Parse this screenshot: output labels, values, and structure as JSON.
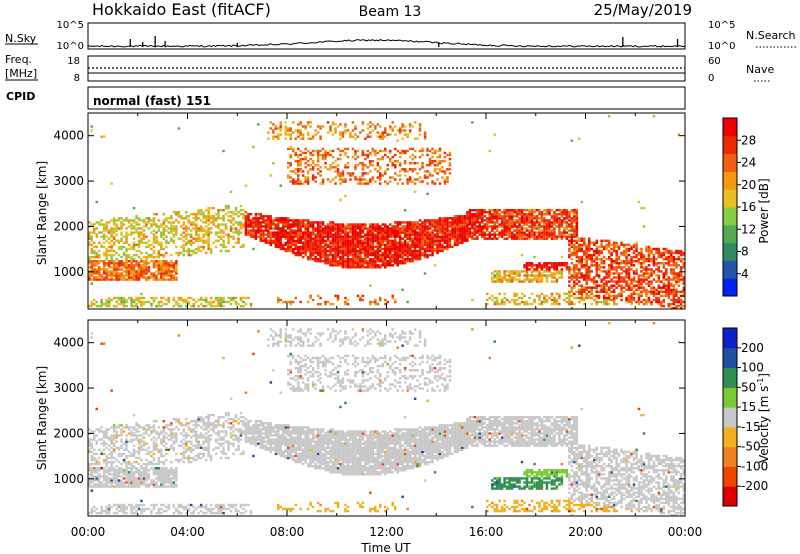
{
  "header": {
    "station": "Hokkaido East (fitACF)",
    "beam": "Beam 13",
    "date": "25/May/2019"
  },
  "top_panels": {
    "nsky_label": "N.Sky",
    "nsky_ticks": [
      "10^5",
      "10^0"
    ],
    "nsearch_label": "N.Search",
    "nsearch_ticks": [
      "10^5",
      "10^0"
    ],
    "freq_label": "Freq.",
    "freq_unit": "[MHz]",
    "freq_ticks": [
      "18",
      "8"
    ],
    "nave_label": "Nave",
    "nave_ticks": [
      "60",
      "0"
    ],
    "cpid_label": "CPID",
    "cpid_value": "normal (fast) 151"
  },
  "chart_data": [
    {
      "type": "heatmap",
      "name": "power",
      "ylabel": "Slant Range [km]",
      "yticks": [
        "4000",
        "3000",
        "2000",
        "1000"
      ],
      "ylim": [
        180,
        4500
      ],
      "xlim": [
        "00:00",
        "24:00"
      ],
      "colorbar": {
        "label": "Power [dB]",
        "ticks": [
          "28",
          "24",
          "20",
          "16",
          "12",
          "8",
          "4"
        ],
        "range": [
          0,
          30
        ],
        "colors": [
          "#0022ee",
          "#2255aa",
          "#338866",
          "#55aa55",
          "#88cc44",
          "#e8c020",
          "#f59a10",
          "#f06010",
          "#ee2a00",
          "#ee0000"
        ]
      }
    },
    {
      "type": "heatmap",
      "name": "velocity",
      "ylabel": "Slant Range [km]",
      "yticks": [
        "4000",
        "3000",
        "2000",
        "1000"
      ],
      "ylim": [
        180,
        4500
      ],
      "xlim": [
        "00:00",
        "24:00"
      ],
      "xlabel": "Time UT",
      "xticks": [
        "00:00",
        "04:00",
        "08:00",
        "12:00",
        "16:00",
        "20:00",
        "00:00"
      ],
      "colorbar": {
        "label": "Velocity [m s",
        "label_sup": "-1",
        "label_end": "]",
        "ticks": [
          "200",
          "100",
          "50",
          "15",
          "-15",
          "-50",
          "-100",
          "-200"
        ],
        "range": [
          -250,
          250
        ],
        "colors": [
          "#dd0000",
          "#ee4400",
          "#f08020",
          "#f0b020",
          "#c8c8c8",
          "#77cc33",
          "#2f8f4e",
          "#2050a0",
          "#1020c8"
        ]
      }
    }
  ]
}
